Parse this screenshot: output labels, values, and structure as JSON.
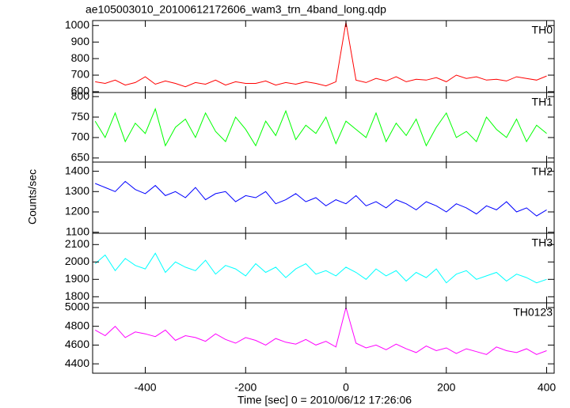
{
  "chart_data": [
    {
      "type": "line",
      "title": "ae105003010_20100612172606_wam3_trn_4band_long.qdp",
      "label": "TH0",
      "color": "#ff0000",
      "x": [
        -500,
        -480,
        -460,
        -440,
        -420,
        -400,
        -380,
        -360,
        -340,
        -320,
        -300,
        -280,
        -260,
        -240,
        -220,
        -200,
        -180,
        -160,
        -140,
        -120,
        -100,
        -80,
        -60,
        -40,
        -20,
        0,
        20,
        40,
        60,
        80,
        100,
        120,
        140,
        160,
        180,
        200,
        220,
        240,
        260,
        280,
        300,
        320,
        340,
        360,
        380,
        400
      ],
      "values": [
        660,
        650,
        670,
        640,
        655,
        690,
        645,
        665,
        650,
        630,
        655,
        645,
        670,
        640,
        660,
        650,
        650,
        665,
        640,
        655,
        645,
        660,
        650,
        635,
        660,
        1020,
        670,
        655,
        680,
        665,
        690,
        660,
        675,
        670,
        685,
        660,
        700,
        680,
        690,
        670,
        675,
        665,
        690,
        680,
        670,
        695
      ],
      "xlim": [
        -505,
        415
      ],
      "xticks": [
        -400,
        -200,
        0,
        200,
        400
      ],
      "ylim": [
        595,
        1030
      ],
      "yticks": [
        600,
        700,
        800,
        900,
        1000
      ]
    },
    {
      "type": "line",
      "label": "TH1",
      "color": "#00ff00",
      "x": [
        -500,
        -480,
        -460,
        -440,
        -420,
        -400,
        -380,
        -360,
        -340,
        -320,
        -300,
        -280,
        -260,
        -240,
        -220,
        -200,
        -180,
        -160,
        -140,
        -120,
        -100,
        -80,
        -60,
        -40,
        -20,
        0,
        20,
        40,
        60,
        80,
        100,
        120,
        140,
        160,
        180,
        200,
        220,
        240,
        260,
        280,
        300,
        320,
        340,
        360,
        380,
        400
      ],
      "values": [
        740,
        700,
        760,
        690,
        735,
        710,
        770,
        680,
        725,
        745,
        700,
        760,
        715,
        690,
        750,
        720,
        680,
        740,
        705,
        765,
        695,
        730,
        710,
        750,
        685,
        740,
        720,
        700,
        760,
        690,
        735,
        705,
        745,
        680,
        725,
        760,
        700,
        715,
        690,
        750,
        720,
        700,
        745,
        690,
        730,
        710
      ],
      "xlim": [
        -505,
        415
      ],
      "xticks": [
        -400,
        -200,
        0,
        200,
        400
      ],
      "ylim": [
        640,
        810
      ],
      "yticks": [
        650,
        700,
        750,
        800
      ]
    },
    {
      "type": "line",
      "label": "TH2",
      "ylabel": "Counts/sec",
      "color": "#0000ff",
      "x": [
        -500,
        -480,
        -460,
        -440,
        -420,
        -400,
        -380,
        -360,
        -340,
        -320,
        -300,
        -280,
        -260,
        -240,
        -220,
        -200,
        -180,
        -160,
        -140,
        -120,
        -100,
        -80,
        -60,
        -40,
        -20,
        0,
        20,
        40,
        60,
        80,
        100,
        120,
        140,
        160,
        180,
        200,
        220,
        240,
        260,
        280,
        300,
        320,
        340,
        360,
        380,
        400
      ],
      "values": [
        1340,
        1320,
        1300,
        1350,
        1310,
        1290,
        1330,
        1280,
        1300,
        1270,
        1320,
        1260,
        1290,
        1300,
        1250,
        1280,
        1270,
        1300,
        1240,
        1260,
        1290,
        1250,
        1270,
        1230,
        1260,
        1240,
        1280,
        1230,
        1250,
        1220,
        1260,
        1240,
        1210,
        1250,
        1230,
        1200,
        1240,
        1220,
        1190,
        1230,
        1210,
        1250,
        1200,
        1220,
        1180,
        1210
      ],
      "xlim": [
        -505,
        415
      ],
      "xticks": [
        -400,
        -200,
        0,
        200,
        400
      ],
      "ylim": [
        1095,
        1445
      ],
      "yticks": [
        1100,
        1200,
        1300,
        1400
      ]
    },
    {
      "type": "line",
      "label": "TH3",
      "color": "#00ffff",
      "x": [
        -500,
        -480,
        -460,
        -440,
        -420,
        -400,
        -380,
        -360,
        -340,
        -320,
        -300,
        -280,
        -260,
        -240,
        -220,
        -200,
        -180,
        -160,
        -140,
        -120,
        -100,
        -80,
        -60,
        -40,
        -20,
        0,
        20,
        40,
        60,
        80,
        100,
        120,
        140,
        160,
        180,
        200,
        220,
        240,
        260,
        280,
        300,
        320,
        340,
        360,
        380,
        400
      ],
      "values": [
        1990,
        2040,
        1950,
        2020,
        1980,
        1960,
        2050,
        1940,
        2000,
        1970,
        1950,
        2010,
        1930,
        1980,
        1960,
        1920,
        1990,
        1940,
        1970,
        1910,
        1960,
        1990,
        1930,
        1950,
        1920,
        1970,
        1940,
        1900,
        1960,
        1920,
        1950,
        1890,
        1940,
        1910,
        1960,
        1880,
        1930,
        1950,
        1900,
        1920,
        1940,
        1890,
        1930,
        1910,
        1880,
        1900
      ],
      "xlim": [
        -505,
        415
      ],
      "xticks": [
        -400,
        -200,
        0,
        200,
        400
      ],
      "ylim": [
        1765,
        2165
      ],
      "yticks": [
        1800,
        1900,
        2000,
        2100
      ]
    },
    {
      "type": "line",
      "label": "TH0123",
      "xlabel": "Time [sec] 0 = 2010/06/12 17:26:06",
      "color": "#ff00ff",
      "x": [
        -500,
        -480,
        -460,
        -440,
        -420,
        -400,
        -380,
        -360,
        -340,
        -320,
        -300,
        -280,
        -260,
        -240,
        -220,
        -200,
        -180,
        -160,
        -140,
        -120,
        -100,
        -80,
        -60,
        -40,
        -20,
        0,
        20,
        40,
        60,
        80,
        100,
        120,
        140,
        160,
        180,
        200,
        220,
        240,
        260,
        280,
        300,
        320,
        340,
        360,
        380,
        400
      ],
      "values": [
        4760,
        4700,
        4800,
        4680,
        4740,
        4720,
        4690,
        4760,
        4650,
        4700,
        4680,
        4640,
        4720,
        4660,
        4620,
        4680,
        4650,
        4600,
        4670,
        4630,
        4610,
        4660,
        4600,
        4640,
        4580,
        5000,
        4620,
        4570,
        4600,
        4550,
        4610,
        4560,
        4520,
        4590,
        4540,
        4570,
        4510,
        4560,
        4530,
        4500,
        4580,
        4540,
        4520,
        4560,
        4500,
        4540
      ],
      "xlim": [
        -505,
        415
      ],
      "xticks": [
        -400,
        -200,
        0,
        200,
        400
      ],
      "ylim": [
        4300,
        5050
      ],
      "yticks": [
        4400,
        4600,
        4800,
        5000
      ]
    }
  ]
}
